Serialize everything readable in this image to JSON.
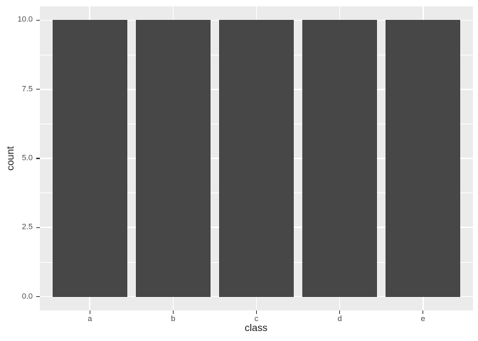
{
  "chart_data": {
    "type": "bar",
    "title": "",
    "categories": [
      "a",
      "b",
      "c",
      "d",
      "e"
    ],
    "values": [
      10,
      10,
      10,
      10,
      10
    ],
    "xlabel": "class",
    "ylabel": "count",
    "ylim": [
      -0.5,
      10.5
    ],
    "yticks": [
      0.0,
      2.5,
      5.0,
      7.5,
      10.0
    ],
    "ytick_labels": [
      "0.0",
      "2.5",
      "5.0",
      "7.5",
      "10.0"
    ],
    "yminor_ticks": [
      1.25,
      3.75,
      6.25,
      8.75
    ],
    "bar_width_fraction": 0.9,
    "x_expand": 0.6,
    "grid": true,
    "legend": false,
    "style": "ggplot2",
    "colors": {
      "bar_fill": "#474747",
      "panel_bg": "#EBEBEB",
      "grid_major": "#FFFFFF",
      "grid_minor": "#FFFFFF",
      "tick_label_text": "#4D4D4D",
      "axis_title_text": "#1A1A1A",
      "tick_mark": "#333333",
      "outer_bg": "#FFFFFF"
    }
  }
}
